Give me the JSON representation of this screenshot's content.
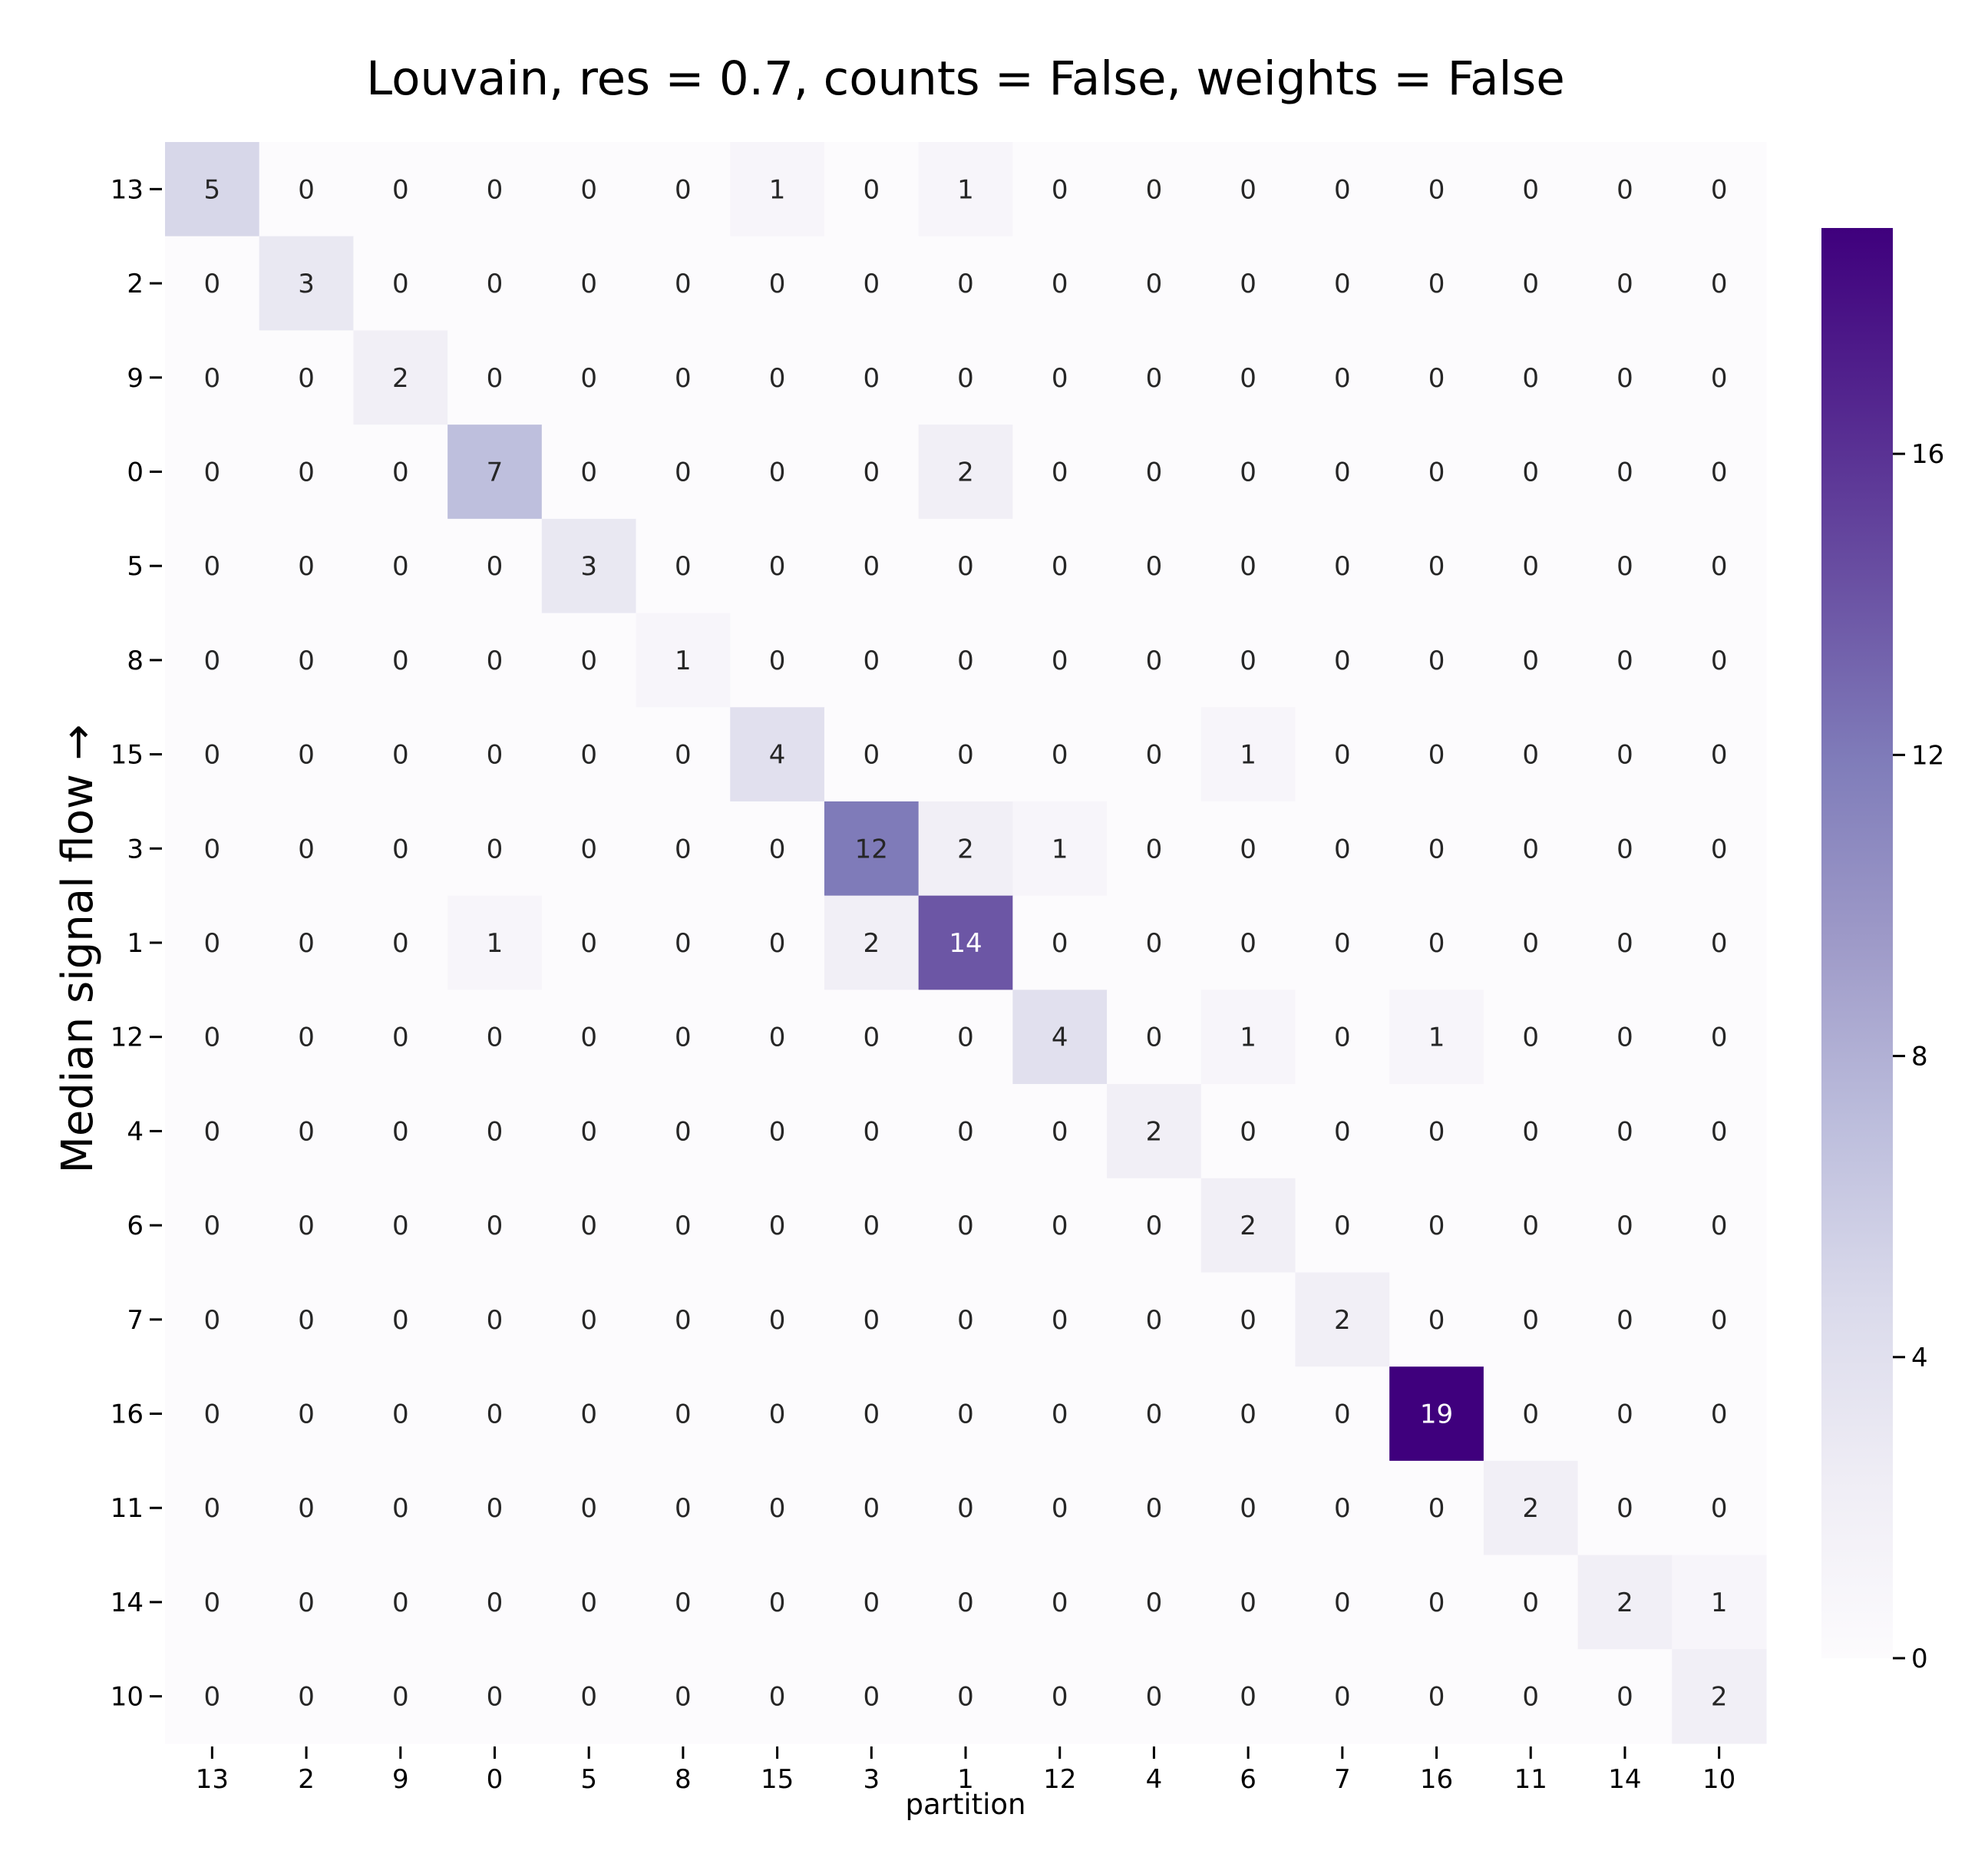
{
  "chart_data": {
    "type": "heatmap",
    "title": "Louvain, res = 0.7, counts = False, weights = False",
    "xlabel": "partition",
    "ylabel": "Median signal flow →",
    "row_labels": [
      "13",
      "2",
      "9",
      "0",
      "5",
      "8",
      "15",
      "3",
      "1",
      "12",
      "4",
      "6",
      "7",
      "16",
      "11",
      "14",
      "10"
    ],
    "col_labels": [
      "13",
      "2",
      "9",
      "0",
      "5",
      "8",
      "15",
      "3",
      "1",
      "12",
      "4",
      "6",
      "7",
      "16",
      "11",
      "14",
      "10"
    ],
    "values": [
      [
        5,
        0,
        0,
        0,
        0,
        0,
        1,
        0,
        1,
        0,
        0,
        0,
        0,
        0,
        0,
        0,
        0
      ],
      [
        0,
        3,
        0,
        0,
        0,
        0,
        0,
        0,
        0,
        0,
        0,
        0,
        0,
        0,
        0,
        0,
        0
      ],
      [
        0,
        0,
        2,
        0,
        0,
        0,
        0,
        0,
        0,
        0,
        0,
        0,
        0,
        0,
        0,
        0,
        0
      ],
      [
        0,
        0,
        0,
        7,
        0,
        0,
        0,
        0,
        2,
        0,
        0,
        0,
        0,
        0,
        0,
        0,
        0
      ],
      [
        0,
        0,
        0,
        0,
        3,
        0,
        0,
        0,
        0,
        0,
        0,
        0,
        0,
        0,
        0,
        0,
        0
      ],
      [
        0,
        0,
        0,
        0,
        0,
        1,
        0,
        0,
        0,
        0,
        0,
        0,
        0,
        0,
        0,
        0,
        0
      ],
      [
        0,
        0,
        0,
        0,
        0,
        0,
        4,
        0,
        0,
        0,
        0,
        1,
        0,
        0,
        0,
        0,
        0
      ],
      [
        0,
        0,
        0,
        0,
        0,
        0,
        0,
        12,
        2,
        1,
        0,
        0,
        0,
        0,
        0,
        0,
        0
      ],
      [
        0,
        0,
        0,
        1,
        0,
        0,
        0,
        2,
        14,
        0,
        0,
        0,
        0,
        0,
        0,
        0,
        0
      ],
      [
        0,
        0,
        0,
        0,
        0,
        0,
        0,
        0,
        0,
        4,
        0,
        1,
        0,
        1,
        0,
        0,
        0
      ],
      [
        0,
        0,
        0,
        0,
        0,
        0,
        0,
        0,
        0,
        0,
        2,
        0,
        0,
        0,
        0,
        0,
        0
      ],
      [
        0,
        0,
        0,
        0,
        0,
        0,
        0,
        0,
        0,
        0,
        0,
        2,
        0,
        0,
        0,
        0,
        0
      ],
      [
        0,
        0,
        0,
        0,
        0,
        0,
        0,
        0,
        0,
        0,
        0,
        0,
        2,
        0,
        0,
        0,
        0
      ],
      [
        0,
        0,
        0,
        0,
        0,
        0,
        0,
        0,
        0,
        0,
        0,
        0,
        0,
        19,
        0,
        0,
        0
      ],
      [
        0,
        0,
        0,
        0,
        0,
        0,
        0,
        0,
        0,
        0,
        0,
        0,
        0,
        0,
        2,
        0,
        0
      ],
      [
        0,
        0,
        0,
        0,
        0,
        0,
        0,
        0,
        0,
        0,
        0,
        0,
        0,
        0,
        0,
        2,
        1
      ],
      [
        0,
        0,
        0,
        0,
        0,
        0,
        0,
        0,
        0,
        0,
        0,
        0,
        0,
        0,
        0,
        0,
        2
      ]
    ],
    "colorbar": {
      "colormap": "Purples",
      "vmin": 0,
      "vmax": 19,
      "ticks": [
        0,
        4,
        8,
        12,
        16
      ]
    },
    "grid": false
  }
}
